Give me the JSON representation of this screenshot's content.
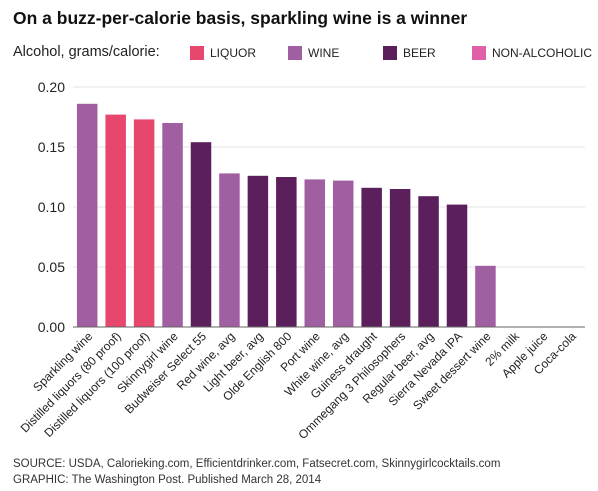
{
  "title": "On a buzz-per-calorie basis, sparkling wine is a winner",
  "legend_label": "Alcohol, grams/calorie:",
  "footer": {
    "source": "SOURCE: USDA, Calorieking.com, Efficientdrinker.com, Fatsecret.com, Skinnygirlcocktails.com",
    "graphic": "GRAPHIC: The Washington Post. Published March 28, 2014"
  },
  "colors": {
    "liquor": "#e8476d",
    "wine": "#a05fa0",
    "beer": "#5b1f5c",
    "non_alcoholic": "#e060a8",
    "grid": "#e3e3e3",
    "axis": "#666666"
  },
  "chart_data": {
    "type": "bar",
    "title": "On a buzz-per-calorie basis, sparkling wine is a winner",
    "ylabel": "Alcohol, grams/calorie",
    "ylim": [
      0,
      0.2
    ],
    "yticks": [
      "0.00",
      "0.05",
      "0.10",
      "0.15",
      "0.20"
    ],
    "grid": true,
    "legend": [
      {
        "key": "liquor",
        "name": "LIQUOR"
      },
      {
        "key": "wine",
        "name": "WINE"
      },
      {
        "key": "beer",
        "name": "BEER"
      },
      {
        "key": "non_alcoholic",
        "name": "NON-ALCOHOLIC"
      }
    ],
    "categories": [
      "Sparkling wine",
      "Distilled liquors (80 proof)",
      "Distilled liquors (100 proof)",
      "Skinnygirl wine",
      "Budweiser Select 55",
      "Red wine, avg",
      "Light beer, avg",
      "Olde English 800",
      "Port wine",
      "White wine, avg",
      "Guiness draught",
      "Ommegang 3 Philosophers",
      "Regular beer, avg",
      "Sierra Nevada IPA",
      "Sweet dessert wine",
      "2% milk",
      "Apple juice",
      "Coca-cola"
    ],
    "values": [
      0.186,
      0.177,
      0.173,
      0.17,
      0.154,
      0.128,
      0.126,
      0.125,
      0.123,
      0.122,
      0.116,
      0.115,
      0.109,
      0.102,
      0.051,
      0,
      0,
      0
    ],
    "groups": [
      "wine",
      "liquor",
      "liquor",
      "wine",
      "beer",
      "wine",
      "beer",
      "beer",
      "wine",
      "wine",
      "beer",
      "beer",
      "beer",
      "beer",
      "wine",
      "non_alcoholic",
      "non_alcoholic",
      "non_alcoholic"
    ]
  }
}
